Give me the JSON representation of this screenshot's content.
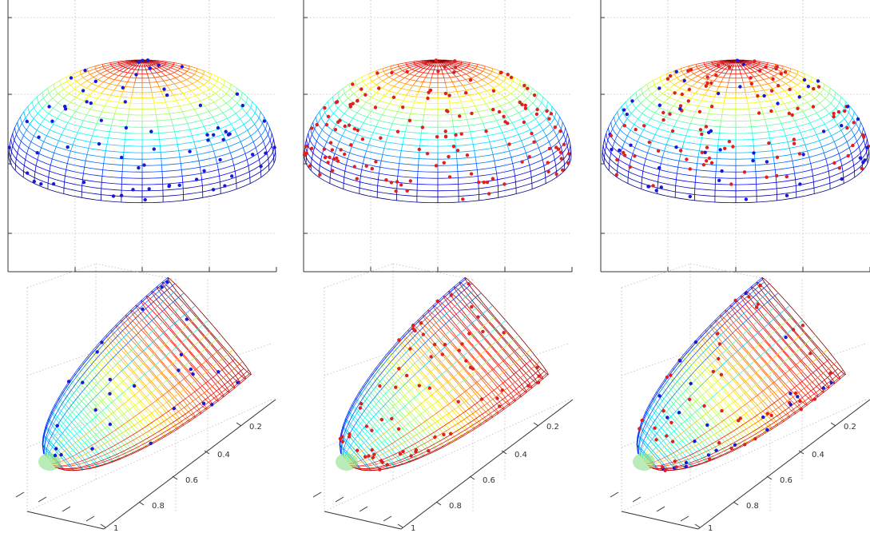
{
  "figure": {
    "panels": [
      {
        "id": "hemisphere-blue",
        "row": "top",
        "point_color": "#1a1ad6"
      },
      {
        "id": "hemisphere-red",
        "row": "top",
        "point_color": "#e02020"
      },
      {
        "id": "hemisphere-mixed",
        "row": "top",
        "point_color": "mixed"
      },
      {
        "id": "ellipsoid-blue",
        "row": "bottom",
        "point_color": "#1a1ad6"
      },
      {
        "id": "ellipsoid-red",
        "row": "bottom",
        "point_color": "#e02020"
      },
      {
        "id": "ellipsoid-mixed",
        "row": "bottom",
        "point_color": "mixed"
      }
    ],
    "y_tick_labels": [
      "0.2",
      "0.4",
      "0.6",
      "0.8",
      "1"
    ],
    "colormap": "jet",
    "colors": {
      "blue_points": "#1a1ad6",
      "red_points": "#e02020",
      "grid": "#bdbdbd",
      "axis": "#333333"
    }
  }
}
